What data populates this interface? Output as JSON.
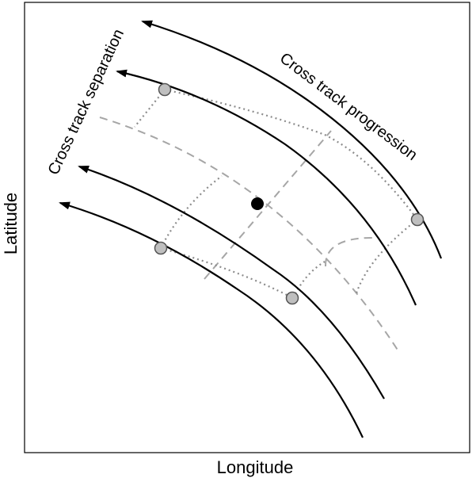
{
  "axes": {
    "x_label": "Longitude",
    "y_label": "Latitude"
  },
  "annotations": {
    "cross_track_separation": "Cross track separation",
    "cross_track_progression": "Cross track progression"
  },
  "colors": {
    "track": "#000000",
    "guide_dashed": "#a6a6a6",
    "guide_dotted": "#8c8c8c",
    "marker_fill": "#bfbfbf",
    "center_point": "#000000"
  }
}
